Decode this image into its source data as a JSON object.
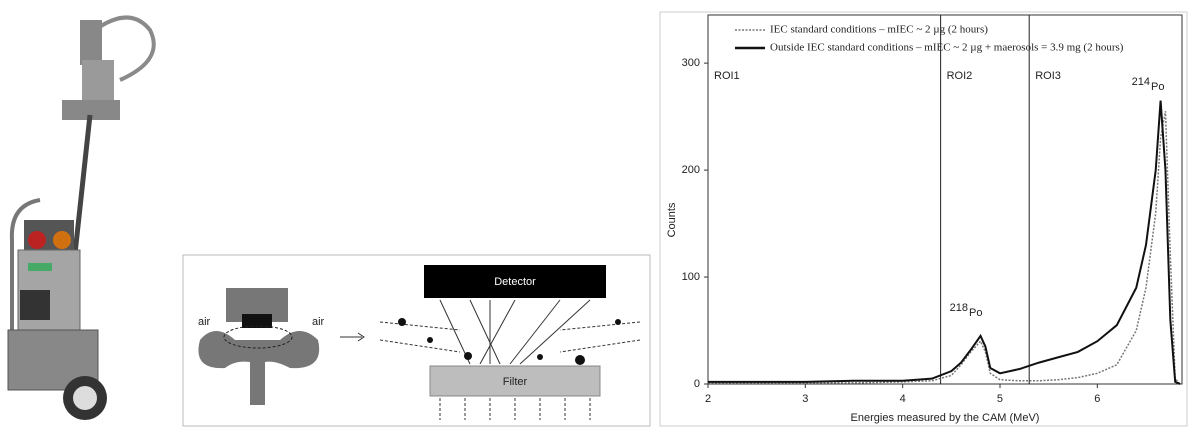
{
  "diagram": {
    "air_left": "air",
    "air_right": "air",
    "detector": "Detector",
    "filter": "Filter"
  },
  "chart_data": {
    "type": "line",
    "xlabel": "Energies measured by the CAM (MeV)",
    "ylabel": "Counts",
    "xlim": [
      2,
      6.87
    ],
    "ylim": [
      0,
      345
    ],
    "xticks": [
      2,
      3,
      4,
      5,
      6
    ],
    "yticks": [
      0,
      100,
      200,
      300
    ],
    "x": [
      2.0,
      2.5,
      3.0,
      3.5,
      4.0,
      4.3,
      4.5,
      4.6,
      4.7,
      4.8,
      4.85,
      4.9,
      5.0,
      5.2,
      5.4,
      5.6,
      5.8,
      6.0,
      6.2,
      6.4,
      6.5,
      6.6,
      6.65,
      6.7,
      6.75,
      6.8,
      6.85
    ],
    "series": [
      {
        "name": "IEC standard conditions – mIEC ~ 2 µg (2 hours)",
        "color": "#777777",
        "dashed": true,
        "values": [
          1,
          1,
          1,
          1,
          2,
          3,
          8,
          18,
          30,
          40,
          30,
          10,
          4,
          3,
          3,
          4,
          6,
          10,
          18,
          50,
          90,
          160,
          230,
          255,
          120,
          5,
          0
        ]
      },
      {
        "name": "Outside IEC standard conditions – mIEC ~ 2 µg + maerosols = 3.9 mg (2 hours)",
        "color": "#111111",
        "dashed": false,
        "values": [
          2,
          2,
          2,
          3,
          3,
          5,
          12,
          20,
          32,
          45,
          35,
          15,
          10,
          14,
          20,
          25,
          30,
          40,
          55,
          90,
          130,
          200,
          265,
          200,
          60,
          2,
          0
        ]
      }
    ],
    "regions": [
      {
        "label": "ROI1"
      },
      {
        "label": "ROI2",
        "start": 4.39
      },
      {
        "label": "ROI3",
        "start": 5.3
      }
    ],
    "peaks": [
      {
        "mass": "218",
        "element": "Po"
      },
      {
        "mass": "214",
        "element": "Po"
      }
    ]
  }
}
